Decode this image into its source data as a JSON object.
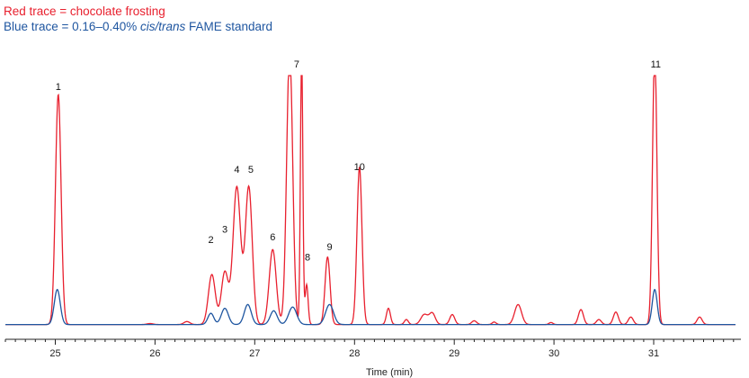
{
  "chart_data": {
    "type": "line",
    "legend": {
      "red_label": "Red trace = chocolate frosting",
      "blue_prefix": "Blue trace = 0.16–0.40% ",
      "blue_italic": "cis/trans",
      "blue_suffix": " FAME standard"
    },
    "xlabel": "Time (min)",
    "xlim": [
      24.5,
      31.82
    ],
    "ylim": [
      0,
      100
    ],
    "x_ticks": [
      25,
      26,
      27,
      28,
      29,
      30,
      31
    ],
    "colors": {
      "red": "#e8202e",
      "blue": "#1f56a0",
      "axis": "#222222"
    },
    "series": [
      {
        "color_key": "red",
        "baseline": 0.5,
        "peaks": [
          [
            25.03,
            92,
            0.028
          ],
          [
            25.95,
            0.4,
            0.03
          ],
          [
            26.32,
            1.2,
            0.03
          ],
          [
            26.57,
            20,
            0.035
          ],
          [
            26.7,
            21,
            0.035
          ],
          [
            26.82,
            55,
            0.038
          ],
          [
            26.94,
            55,
            0.035
          ],
          [
            27.18,
            30,
            0.035
          ],
          [
            27.35,
            110,
            0.03
          ],
          [
            27.47,
            110,
            0.012
          ],
          [
            27.52,
            16,
            0.015
          ],
          [
            27.73,
            27,
            0.025
          ],
          [
            28.05,
            63,
            0.025
          ],
          [
            28.34,
            6.5,
            0.02
          ],
          [
            28.52,
            2,
            0.02
          ],
          [
            28.7,
            4,
            0.035
          ],
          [
            28.78,
            4.5,
            0.03
          ],
          [
            28.98,
            4,
            0.025
          ],
          [
            29.2,
            1.5,
            0.025
          ],
          [
            29.4,
            1,
            0.02
          ],
          [
            29.64,
            8,
            0.035
          ],
          [
            29.97,
            0.8,
            0.02
          ],
          [
            30.27,
            6,
            0.025
          ],
          [
            30.45,
            2,
            0.025
          ],
          [
            30.62,
            5,
            0.025
          ],
          [
            30.77,
            3,
            0.025
          ],
          [
            31.01,
            110,
            0.022
          ],
          [
            31.46,
            3,
            0.025
          ]
        ]
      },
      {
        "color_key": "blue",
        "baseline": 0.5,
        "peaks": [
          [
            25.02,
            14,
            0.03
          ],
          [
            26.56,
            4.5,
            0.03
          ],
          [
            26.7,
            6.5,
            0.035
          ],
          [
            26.93,
            8,
            0.035
          ],
          [
            27.19,
            5.5,
            0.035
          ],
          [
            27.38,
            7,
            0.04
          ],
          [
            27.75,
            8,
            0.04
          ],
          [
            31.01,
            14,
            0.025
          ]
        ]
      }
    ],
    "peak_labels": [
      {
        "text": "1",
        "x": 25.03,
        "y": 92
      },
      {
        "text": "2",
        "x": 26.56,
        "y": 31
      },
      {
        "text": "3",
        "x": 26.7,
        "y": 35
      },
      {
        "text": "4",
        "x": 26.82,
        "y": 59
      },
      {
        "text": "5",
        "x": 26.96,
        "y": 59
      },
      {
        "text": "6",
        "x": 27.18,
        "y": 32
      },
      {
        "text": "7",
        "x": 27.42,
        "y": 101
      },
      {
        "text": "8",
        "x": 27.53,
        "y": 24
      },
      {
        "text": "9",
        "x": 27.75,
        "y": 28
      },
      {
        "text": "10",
        "x": 28.05,
        "y": 60
      },
      {
        "text": "11",
        "x": 31.02,
        "y": 101
      }
    ]
  }
}
